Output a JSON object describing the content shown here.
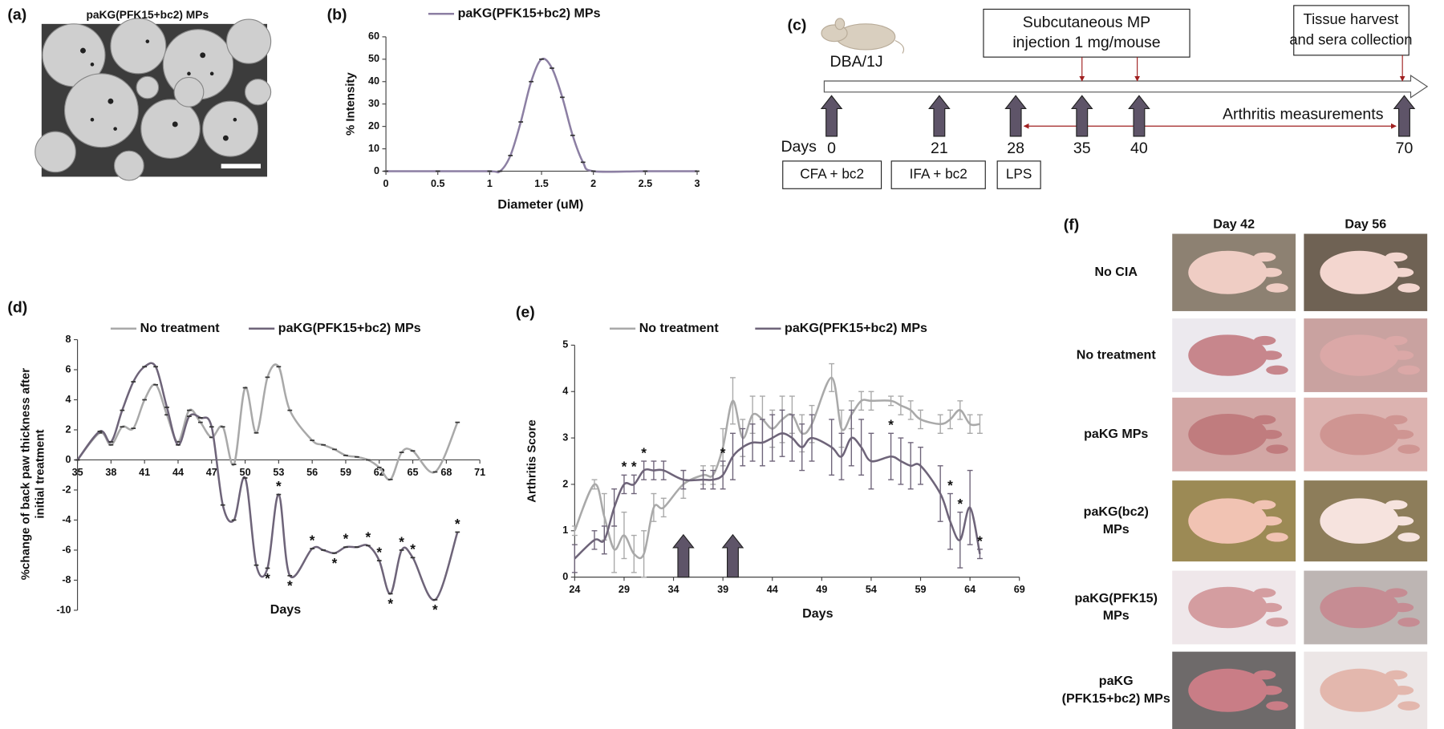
{
  "panel_labels": [
    "(a)",
    "(b)",
    "(c)",
    "(d)",
    "(e)",
    "(f)"
  ],
  "sem": {
    "title": "paKG(PFK15+bc2) MPs"
  },
  "timeline": {
    "strain": "DBA/1J",
    "injection_box": [
      "Subcutaneous MP",
      "injection 1 mg/mouse"
    ],
    "harvest_box": [
      "Tissue harvest",
      "and sera collection"
    ],
    "days_label": "Days",
    "days": [
      0,
      21,
      28,
      35,
      40,
      70
    ],
    "measure_label": "Arthritis measurements",
    "steps": [
      "CFA + bc2",
      "IFA + bc2",
      "LPS"
    ]
  },
  "photos": {
    "columns": [
      "Day 42",
      "Day 56"
    ],
    "rows": [
      [
        "No CIA"
      ],
      [
        "No treatment"
      ],
      [
        "paKG MPs"
      ],
      [
        "paKG(bc2)",
        "MPs"
      ],
      [
        "paKG(PFK15)",
        "MPs"
      ],
      [
        "paKG",
        "(PFK15+bc2) MPs"
      ]
    ]
  },
  "chart_data": [
    {
      "type": "line",
      "smooth": true,
      "xlabel": "Diameter (uM)",
      "ylabel": "% Intensity",
      "x": [
        0,
        0.5,
        1,
        1.1,
        1.2,
        1.3,
        1.4,
        1.5,
        1.6,
        1.7,
        1.8,
        1.9,
        2,
        2.5,
        3
      ],
      "series": [
        {
          "name": "paKG(PFK15+bc2) MPs",
          "color": "#8c7fa3",
          "values": [
            0,
            0,
            0,
            0,
            7,
            22,
            40,
            50,
            46,
            33,
            16,
            4,
            0,
            0,
            0
          ]
        }
      ],
      "xlim": [
        0,
        3
      ],
      "xticks": [
        0,
        0.5,
        1,
        1.5,
        2,
        2.5,
        3
      ],
      "ylim": [
        0,
        60
      ],
      "yticks": [
        0,
        10,
        20,
        30,
        40,
        50,
        60
      ]
    },
    {
      "type": "line",
      "smooth": true,
      "xlabel": "Days",
      "ylabel": [
        "%change of back paw thickness after",
        "initial treatment"
      ],
      "x": [
        35,
        37,
        38,
        39,
        40,
        41,
        42,
        43,
        44,
        45,
        46,
        47,
        48,
        49,
        50,
        51,
        52,
        53,
        54,
        56,
        57,
        58,
        59,
        60,
        61,
        62,
        63,
        64,
        65,
        67,
        69
      ],
      "series": [
        {
          "name": "No treatment",
          "color": "#a9a9a9",
          "values": [
            0,
            1.8,
            1.0,
            2.2,
            2.1,
            4.0,
            5.0,
            3.0,
            1.2,
            3.3,
            2.5,
            1.5,
            2.2,
            -0.3,
            4.8,
            1.8,
            5.5,
            6.2,
            3.3,
            1.3,
            1.0,
            0.7,
            0.3,
            0.2,
            0,
            -0.5,
            -1.3,
            0.5,
            0.6,
            -0.8,
            2.5
          ]
        },
        {
          "name": "paKG(PFK15+bc2) MPs",
          "color": "#6e6479",
          "values": [
            0,
            1.9,
            1.2,
            3.3,
            5.2,
            6.2,
            6.2,
            3.5,
            1.0,
            2.9,
            2.8,
            2.2,
            -3.0,
            -4.0,
            -1.2,
            -7.0,
            -7.2,
            -2.3,
            -7.7,
            -5.9,
            -6.0,
            -6.2,
            -5.8,
            -5.8,
            -5.7,
            -6.7,
            -8.9,
            -6.0,
            -6.5,
            -9.3,
            -4.8
          ],
          "annotations": [
            null,
            null,
            null,
            null,
            null,
            null,
            null,
            null,
            null,
            null,
            null,
            null,
            null,
            null,
            null,
            null,
            "*",
            "*",
            "*",
            "*",
            null,
            "*",
            "*",
            null,
            "*",
            "*",
            "*",
            "*",
            "*",
            "*",
            "*"
          ]
        }
      ],
      "xlim": [
        35,
        71
      ],
      "xticks": [
        35,
        38,
        41,
        44,
        47,
        50,
        53,
        56,
        59,
        62,
        65,
        68,
        71
      ],
      "ylim": [
        -10,
        8
      ],
      "yticks": [
        -10,
        -8,
        -6,
        -4,
        -2,
        0,
        2,
        4,
        6,
        8
      ]
    },
    {
      "type": "line",
      "smooth": true,
      "xlabel": "Days",
      "ylabel": "Arthritis Score",
      "injection_days": [
        35,
        40
      ],
      "x": [
        24,
        26,
        27,
        28,
        29,
        30,
        31,
        32,
        33,
        35,
        37,
        38,
        39,
        40,
        41,
        42,
        43,
        44,
        45,
        46,
        47,
        48,
        50,
        51,
        52,
        53,
        54,
        56,
        57,
        58,
        59,
        61,
        62,
        63,
        64,
        65
      ],
      "series": [
        {
          "name": "No treatment",
          "color": "#a9a9a9",
          "values": [
            1.0,
            2.0,
            1.3,
            0.6,
            0.9,
            0.5,
            0.5,
            1.5,
            1.5,
            2.0,
            2.2,
            2.2,
            2.8,
            3.8,
            3.0,
            3.5,
            3.4,
            3.2,
            3.4,
            3.5,
            3.1,
            3.3,
            4.3,
            3.2,
            3.5,
            3.8,
            3.8,
            3.8,
            3.7,
            3.6,
            3.4,
            3.3,
            3.4,
            3.6,
            3.3,
            3.3
          ],
          "errors": [
            0.1,
            0.1,
            0.5,
            0.5,
            0.5,
            0.4,
            0.5,
            0.3,
            0.2,
            0.3,
            0.2,
            0.2,
            0.4,
            0.5,
            0.4,
            0.4,
            0.5,
            0.4,
            0.5,
            0.4,
            0.4,
            0.4,
            0.3,
            0.4,
            0.3,
            0.2,
            0.2,
            0.1,
            0.2,
            0.2,
            0.2,
            0.2,
            0.2,
            0.2,
            0.2,
            0.2
          ]
        },
        {
          "name": "paKG(PFK15+bc2) MPs",
          "color": "#6e6479",
          "values": [
            0.4,
            0.8,
            0.8,
            1.5,
            2.0,
            2.0,
            2.3,
            2.3,
            2.3,
            2.1,
            2.1,
            2.1,
            2.2,
            2.6,
            2.8,
            2.9,
            2.9,
            3.0,
            3.1,
            3.0,
            2.8,
            3.0,
            2.8,
            2.6,
            3.0,
            2.8,
            2.5,
            2.6,
            2.5,
            2.4,
            2.4,
            1.8,
            1.2,
            0.8,
            1.5,
            0.5
          ],
          "errors": [
            0.3,
            0.2,
            0.3,
            0.4,
            0.2,
            0.2,
            0.2,
            0.2,
            0.2,
            0.2,
            0.2,
            0.2,
            0.3,
            0.5,
            0.4,
            0.4,
            0.5,
            0.5,
            0.5,
            0.5,
            0.5,
            0.5,
            0.6,
            0.5,
            0.6,
            0.6,
            0.6,
            0.5,
            0.5,
            0.5,
            0.4,
            0.6,
            0.6,
            0.6,
            0.8,
            0.1
          ],
          "annotations": [
            null,
            null,
            null,
            null,
            "*",
            "*",
            "*",
            null,
            null,
            null,
            null,
            null,
            "*",
            null,
            null,
            null,
            null,
            null,
            null,
            null,
            null,
            null,
            null,
            null,
            null,
            null,
            null,
            "*",
            null,
            null,
            null,
            null,
            "*",
            "*",
            null,
            "*"
          ]
        }
      ],
      "xlim": [
        24,
        69
      ],
      "xticks": [
        24,
        29,
        34,
        39,
        44,
        49,
        54,
        59,
        64,
        69
      ],
      "ylim": [
        0,
        5
      ],
      "yticks": [
        0,
        1,
        2,
        3,
        4,
        5
      ]
    }
  ]
}
